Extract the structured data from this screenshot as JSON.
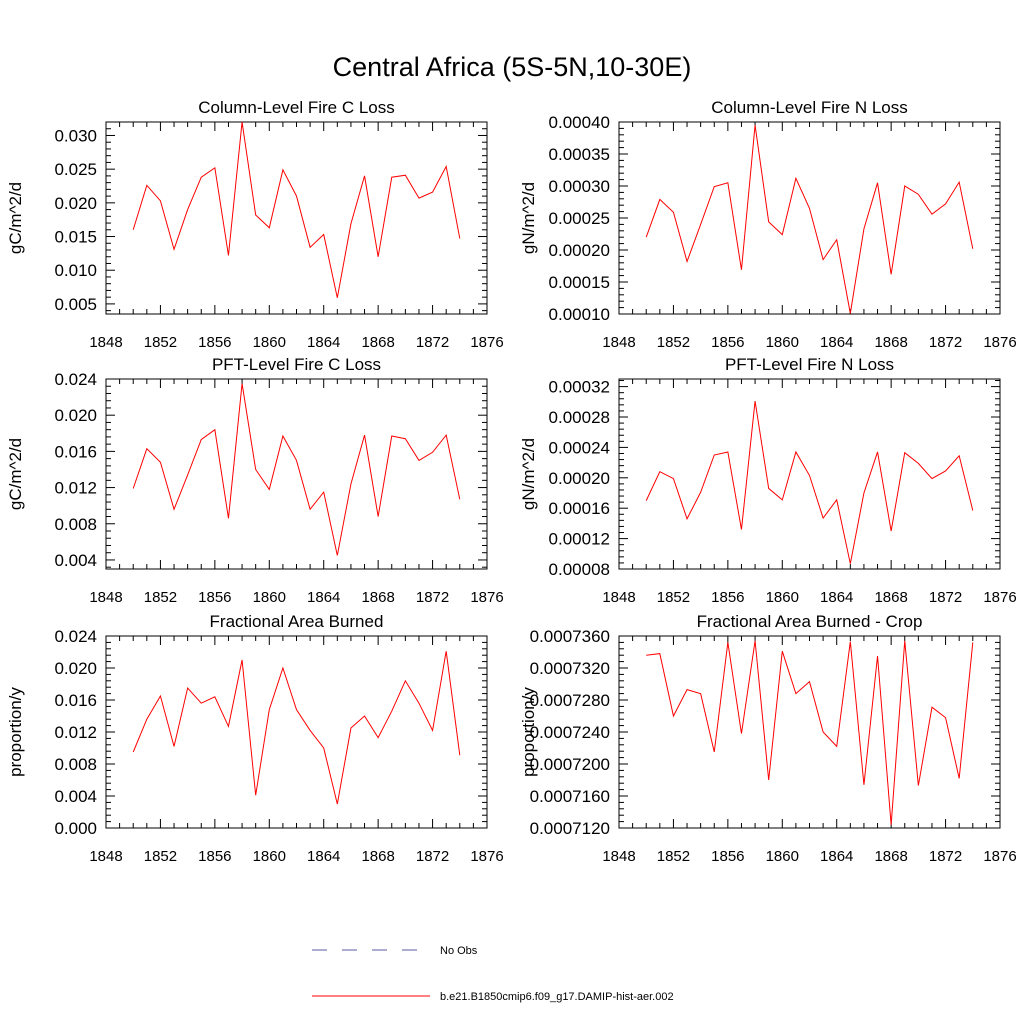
{
  "title": "Central Africa (5S-5N,10-30E)",
  "colors": {
    "model": "#ff0000",
    "obs": "#5a5aa0",
    "axis": "#000000"
  },
  "legend": {
    "entries": [
      {
        "label": "No Obs",
        "style": "dashed",
        "color": "#5a5aa0"
      },
      {
        "label": "b.e21.B1850cmip6.f09_g17.DAMIP-hist-aer.002",
        "style": "solid",
        "color": "#ff0000"
      }
    ]
  },
  "chart_data": [
    {
      "type": "line",
      "title": "Column-Level Fire C Loss",
      "ylabel": "gC/m^2/d",
      "xlim": [
        1848,
        1876
      ],
      "ylim": [
        0.0035,
        0.032
      ],
      "xticks": [
        1848,
        1852,
        1856,
        1860,
        1864,
        1868,
        1872,
        1876
      ],
      "yticks": [
        "0.005",
        "0.010",
        "0.015",
        "0.020",
        "0.025",
        "0.030"
      ],
      "series": [
        {
          "name": "b.e21.B1850cmip6.f09_g17.DAMIP-hist-aer.002",
          "x": [
            1850,
            1851,
            1852,
            1853,
            1854,
            1855,
            1856,
            1857,
            1858,
            1859,
            1860,
            1861,
            1862,
            1863,
            1864,
            1865,
            1866,
            1867,
            1868,
            1869,
            1870,
            1871,
            1872,
            1873,
            1874
          ],
          "y": [
            0.016,
            0.0226,
            0.0203,
            0.0131,
            0.019,
            0.0238,
            0.0252,
            0.0122,
            0.032,
            0.0182,
            0.0163,
            0.0249,
            0.021,
            0.0134,
            0.0153,
            0.0059,
            0.0169,
            0.024,
            0.012,
            0.0238,
            0.0241,
            0.0207,
            0.0216,
            0.0254,
            0.0147
          ]
        }
      ]
    },
    {
      "type": "line",
      "title": "Column-Level Fire N Loss",
      "ylabel": "gN/m^2/d",
      "xlim": [
        1848,
        1876
      ],
      "ylim": [
        0.0001,
        0.0004
      ],
      "xticks": [
        1848,
        1852,
        1856,
        1860,
        1864,
        1868,
        1872,
        1876
      ],
      "yticks": [
        "0.00010",
        "0.00015",
        "0.00020",
        "0.00025",
        "0.00030",
        "0.00035",
        "0.00040"
      ],
      "series": [
        {
          "name": "b.e21.B1850cmip6.f09_g17.DAMIP-hist-aer.002",
          "x": [
            1850,
            1851,
            1852,
            1853,
            1854,
            1855,
            1856,
            1857,
            1858,
            1859,
            1860,
            1861,
            1862,
            1863,
            1864,
            1865,
            1866,
            1867,
            1868,
            1869,
            1870,
            1871,
            1872,
            1873,
            1874
          ],
          "y": [
            0.00022,
            0.000279,
            0.000259,
            0.000182,
            0.00024,
            0.000299,
            0.000305,
            0.000169,
            0.000395,
            0.000244,
            0.000224,
            0.000312,
            0.000265,
            0.000185,
            0.000216,
            0.000101,
            0.000233,
            0.000305,
            0.000162,
            0.0003,
            0.000287,
            0.000256,
            0.000272,
            0.000306,
            0.000202
          ]
        }
      ]
    },
    {
      "type": "line",
      "title": "PFT-Level Fire C Loss",
      "ylabel": "gC/m^2/d",
      "xlim": [
        1848,
        1876
      ],
      "ylim": [
        0.003,
        0.024
      ],
      "xticks": [
        1848,
        1852,
        1856,
        1860,
        1864,
        1868,
        1872,
        1876
      ],
      "yticks": [
        "0.004",
        "0.008",
        "0.012",
        "0.016",
        "0.020",
        "0.024"
      ],
      "series": [
        {
          "name": "b.e21.B1850cmip6.f09_g17.DAMIP-hist-aer.002",
          "x": [
            1850,
            1851,
            1852,
            1853,
            1854,
            1855,
            1856,
            1857,
            1858,
            1859,
            1860,
            1861,
            1862,
            1863,
            1864,
            1865,
            1866,
            1867,
            1868,
            1869,
            1870,
            1871,
            1872,
            1873,
            1874
          ],
          "y": [
            0.0119,
            0.0163,
            0.0148,
            0.0096,
            0.0134,
            0.0173,
            0.0184,
            0.0086,
            0.0235,
            0.014,
            0.0118,
            0.0177,
            0.015,
            0.0096,
            0.0115,
            0.0045,
            0.0124,
            0.0178,
            0.0088,
            0.0177,
            0.0174,
            0.015,
            0.0159,
            0.0178,
            0.0107
          ]
        }
      ]
    },
    {
      "type": "line",
      "title": "PFT-Level Fire N Loss",
      "ylabel": "gN/m^2/d",
      "xlim": [
        1848,
        1876
      ],
      "ylim": [
        8e-05,
        0.00033
      ],
      "xticks": [
        1848,
        1852,
        1856,
        1860,
        1864,
        1868,
        1872,
        1876
      ],
      "yticks": [
        "0.00008",
        "0.00012",
        "0.00016",
        "0.00020",
        "0.00024",
        "0.00028",
        "0.00032"
      ],
      "series": [
        {
          "name": "b.e21.B1850cmip6.f09_g17.DAMIP-hist-aer.002",
          "x": [
            1850,
            1851,
            1852,
            1853,
            1854,
            1855,
            1856,
            1857,
            1858,
            1859,
            1860,
            1861,
            1862,
            1863,
            1864,
            1865,
            1866,
            1867,
            1868,
            1869,
            1870,
            1871,
            1872,
            1873,
            1874
          ],
          "y": [
            0.00017,
            0.000208,
            0.000199,
            0.000146,
            0.000181,
            0.00023,
            0.000234,
            0.000132,
            0.000301,
            0.000186,
            0.000171,
            0.000234,
            0.000203,
            0.000147,
            0.000171,
            8.7e-05,
            0.00018,
            0.000234,
            0.00013,
            0.000233,
            0.000219,
            0.000199,
            0.000209,
            0.000229,
            0.000157
          ]
        }
      ]
    },
    {
      "type": "line",
      "title": "Fractional Area Burned",
      "ylabel": "proportion/y",
      "xlim": [
        1848,
        1876
      ],
      "ylim": [
        0.0,
        0.024
      ],
      "xticks": [
        1848,
        1852,
        1856,
        1860,
        1864,
        1868,
        1872,
        1876
      ],
      "yticks": [
        "0.000",
        "0.004",
        "0.008",
        "0.012",
        "0.016",
        "0.020",
        "0.024"
      ],
      "series": [
        {
          "name": "b.e21.B1850cmip6.f09_g17.DAMIP-hist-aer.002",
          "x": [
            1850,
            1851,
            1852,
            1853,
            1854,
            1855,
            1856,
            1857,
            1858,
            1859,
            1860,
            1861,
            1862,
            1863,
            1864,
            1865,
            1866,
            1867,
            1868,
            1869,
            1870,
            1871,
            1872,
            1873,
            1874
          ],
          "y": [
            0.0095,
            0.0136,
            0.0165,
            0.0102,
            0.0175,
            0.0156,
            0.0164,
            0.0127,
            0.021,
            0.0041,
            0.0148,
            0.02,
            0.0148,
            0.0122,
            0.01,
            0.003,
            0.0125,
            0.014,
            0.0113,
            0.0146,
            0.0184,
            0.0156,
            0.0122,
            0.0221,
            0.0091
          ]
        }
      ]
    },
    {
      "type": "line",
      "title": "Fractional Area Burned - Crop",
      "ylabel": "proportion/y",
      "xlim": [
        1848,
        1876
      ],
      "ylim": [
        0.000712,
        0.000736
      ],
      "xticks": [
        1848,
        1852,
        1856,
        1860,
        1864,
        1868,
        1872,
        1876
      ],
      "yticks": [
        "0.0007120",
        "0.0007160",
        "0.0007200",
        "0.0007240",
        "0.0007280",
        "0.0007320",
        "0.0007360"
      ],
      "series": [
        {
          "name": "b.e21.B1850cmip6.f09_g17.DAMIP-hist-aer.002",
          "x": [
            1850,
            1851,
            1852,
            1853,
            1854,
            1855,
            1856,
            1857,
            1858,
            1859,
            1860,
            1861,
            1862,
            1863,
            1864,
            1865,
            1866,
            1867,
            1868,
            1869,
            1870,
            1871,
            1872,
            1873,
            1874
          ],
          "y": [
            0.0007336,
            0.0007338,
            0.000726,
            0.0007293,
            0.0007288,
            0.0007215,
            0.0007352,
            0.0007238,
            0.0007354,
            0.000718,
            0.0007341,
            0.0007288,
            0.0007303,
            0.000724,
            0.0007222,
            0.0007353,
            0.0007174,
            0.0007335,
            0.0007124,
            0.0007354,
            0.0007173,
            0.0007271,
            0.0007258,
            0.0007182,
            0.0007352
          ]
        }
      ]
    }
  ]
}
